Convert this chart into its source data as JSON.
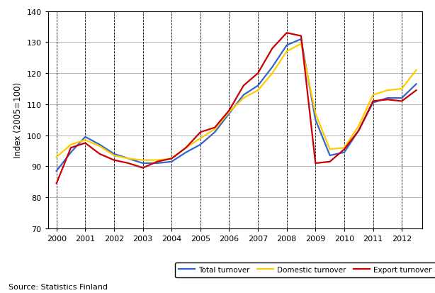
{
  "ylabel": "Index (2005=100)",
  "source": "Source: Statistics Finland",
  "xlim": [
    1999.7,
    2012.7
  ],
  "ylim": [
    70,
    140
  ],
  "yticks": [
    70,
    80,
    90,
    100,
    110,
    120,
    130,
    140
  ],
  "xticks": [
    2000,
    2001,
    2002,
    2003,
    2004,
    2005,
    2006,
    2007,
    2008,
    2009,
    2010,
    2011,
    2012
  ],
  "colors": {
    "total": "#3366cc",
    "domestic": "#ffcc00",
    "export": "#cc0000"
  },
  "legend_labels": [
    "Total turnover",
    "Domestic turnover",
    "Export turnover"
  ],
  "x": [
    2000.0,
    2000.5,
    2001.0,
    2001.5,
    2002.0,
    2002.5,
    2003.0,
    2003.5,
    2004.0,
    2004.5,
    2005.0,
    2005.5,
    2006.0,
    2006.5,
    2007.0,
    2007.5,
    2008.0,
    2008.5,
    2009.0,
    2009.5,
    2010.0,
    2010.5,
    2011.0,
    2011.5,
    2012.0,
    2012.5
  ],
  "total": [
    88.5,
    94.5,
    99.5,
    97.0,
    94.0,
    92.5,
    91.0,
    91.0,
    91.5,
    94.5,
    97.0,
    101.0,
    107.0,
    113.0,
    116.0,
    122.0,
    129.0,
    131.0,
    105.0,
    93.5,
    94.5,
    101.5,
    110.5,
    112.0,
    112.0,
    116.5
  ],
  "domestic": [
    93.0,
    97.0,
    98.5,
    96.5,
    93.5,
    92.5,
    92.0,
    92.0,
    92.5,
    96.0,
    99.0,
    102.0,
    107.5,
    112.0,
    114.5,
    120.0,
    127.0,
    129.5,
    107.0,
    95.5,
    96.0,
    103.0,
    113.0,
    114.5,
    115.0,
    121.0
  ],
  "export": [
    84.5,
    96.0,
    97.5,
    94.0,
    92.0,
    91.0,
    89.5,
    91.5,
    92.5,
    96.0,
    101.0,
    102.5,
    108.0,
    116.0,
    120.0,
    128.0,
    133.0,
    132.0,
    91.0,
    91.5,
    95.5,
    101.5,
    111.0,
    111.5,
    111.0,
    114.5
  ]
}
